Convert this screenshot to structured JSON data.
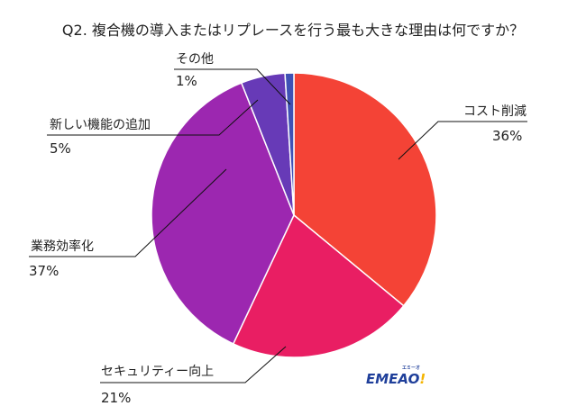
{
  "chart_data": {
    "type": "pie",
    "title": "Q2. 複合機の導入またはリプレースを行う最も大きな理由は何ですか？",
    "categories": [
      "コスト削減",
      "セキュリティー向上",
      "業務効率化",
      "新しい機能の追加",
      "その他"
    ],
    "values": [
      36,
      21,
      37,
      5,
      1
    ],
    "unit": "%",
    "colors": [
      "#f44336",
      "#e91e63",
      "#9c27b0",
      "#673ab7",
      "#3f51b5"
    ],
    "legend": "none (leader-line labels)"
  },
  "title": "Q2. 複合機の導入またはリプレースを行う最も大きな理由は何ですか？",
  "labels": {
    "cost": {
      "name": "コスト削減",
      "pct": "36%"
    },
    "security": {
      "name": "セキュリティー向上",
      "pct": "21%"
    },
    "efficiency": {
      "name": "業務効率化",
      "pct": "37%"
    },
    "features": {
      "name": "新しい機能の追加",
      "pct": "5%"
    },
    "other": {
      "name": "その他",
      "pct": "1%"
    }
  },
  "logo": {
    "text": "EMEAO",
    "mark": "!",
    "kana": "エミーオ"
  }
}
